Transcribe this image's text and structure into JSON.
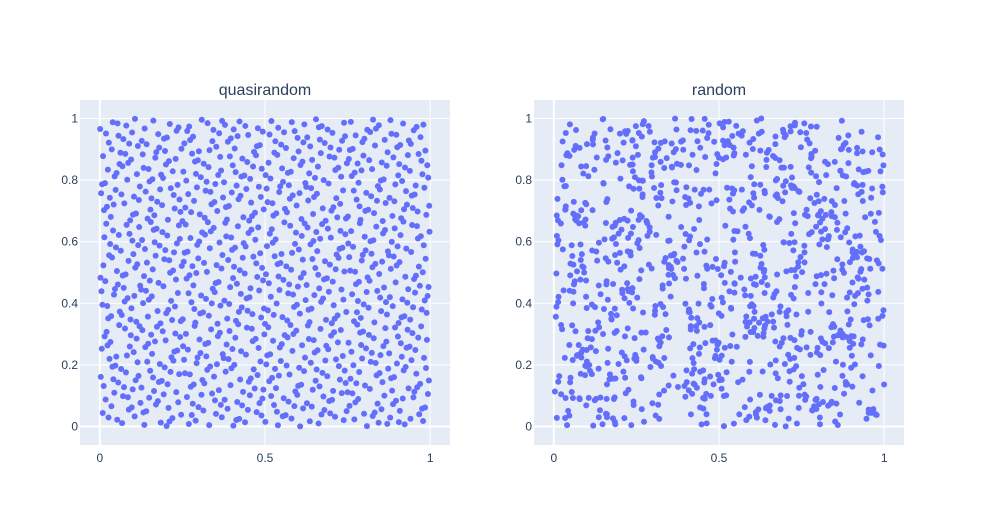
{
  "chart_data": [
    {
      "type": "scatter",
      "title": "quasirandom",
      "xlim": [
        -0.06,
        1.06
      ],
      "ylim": [
        -0.06,
        1.06
      ],
      "x_ticks": [
        0,
        0.5,
        1
      ],
      "x_tick_labels": [
        "0",
        "0.5",
        "1"
      ],
      "y_ticks": [
        0,
        0.2,
        0.4,
        0.6,
        0.8,
        1
      ],
      "y_tick_labels": [
        "0",
        "0.2",
        "0.4",
        "0.6",
        "0.8",
        "1"
      ],
      "grid": true,
      "marker_color": "#636efa",
      "point_count": 1000,
      "sequence": "halton-2-3",
      "points": []
    },
    {
      "type": "scatter",
      "title": "random",
      "xlim": [
        -0.06,
        1.06
      ],
      "ylim": [
        -0.06,
        1.06
      ],
      "x_ticks": [
        0,
        0.5,
        1
      ],
      "x_tick_labels": [
        "0",
        "0.5",
        "1"
      ],
      "y_ticks": [
        0,
        0.2,
        0.4,
        0.6,
        0.8,
        1
      ],
      "y_tick_labels": [
        "0",
        "0.2",
        "0.4",
        "0.6",
        "0.8",
        "1"
      ],
      "grid": true,
      "marker_color": "#636efa",
      "point_count": 1000,
      "sequence": "uniform-random",
      "points": []
    }
  ],
  "colors": {
    "plot_background": "#e5ecf6",
    "grid": "#ffffff",
    "text": "#2a3f5f",
    "marker": "#636efa"
  }
}
